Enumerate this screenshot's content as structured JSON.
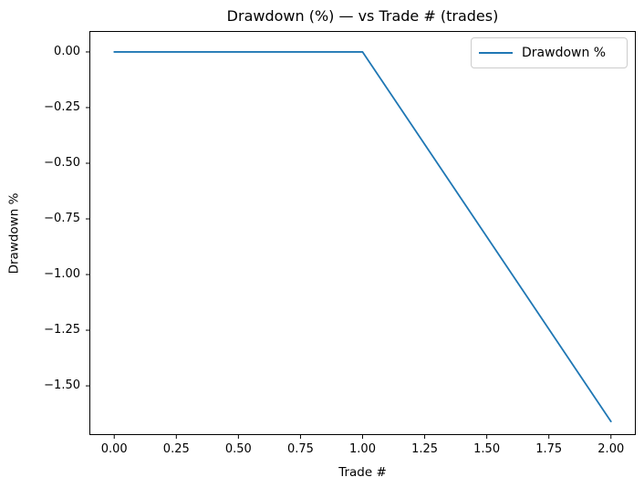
{
  "chart_data": {
    "type": "line",
    "title": "Drawdown (%) — vs Trade # (trades)",
    "xlabel": "Trade #",
    "ylabel": "Drawdown %",
    "xlim": [
      -0.1,
      2.1
    ],
    "ylim": [
      -1.721,
      0.094
    ],
    "xticks": [
      0.0,
      0.25,
      0.5,
      0.75,
      1.0,
      1.25,
      1.5,
      1.75,
      2.0
    ],
    "yticks": [
      0.0,
      -0.25,
      -0.5,
      -0.75,
      -1.0,
      -1.25,
      -1.5
    ],
    "tick_decimals": 2,
    "grid": false,
    "background_color": "#ffffff",
    "axis_color": "#000000",
    "legend": {
      "position": "upper right",
      "border_color": "#cccccc",
      "entries": [
        "Drawdown %"
      ]
    },
    "series": [
      {
        "name": "Drawdown %",
        "color": "#1f77b4",
        "x": [
          0.0,
          1.0,
          2.0
        ],
        "y": [
          0.0,
          0.0,
          -1.66
        ]
      }
    ]
  }
}
